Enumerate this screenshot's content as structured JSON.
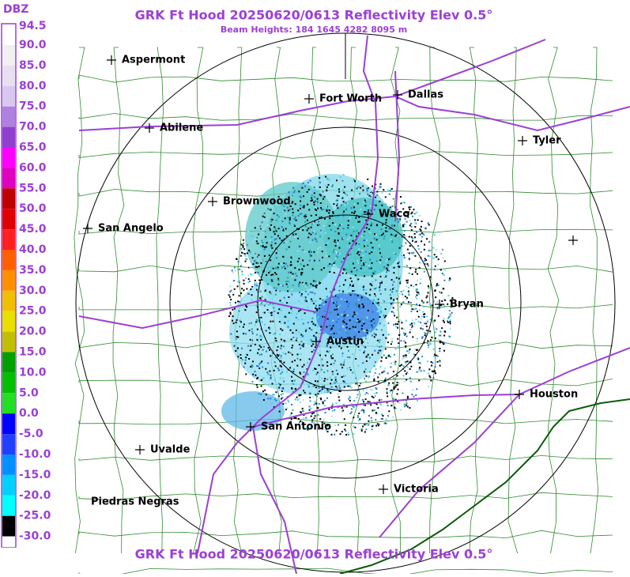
{
  "header": {
    "title": "GRK Ft Hood 20250620/0613 Reflectivity Elev 0.5°",
    "subtitle": "Beam Heights: 184 1645 4282 8095 m",
    "unit": "DBZ"
  },
  "footer": {
    "title": "GRK Ft Hood 20250620/0613 Reflectivity Elev 0.5°"
  },
  "legend": {
    "labels": [
      "94.5",
      "90.0",
      "85.0",
      "80.0",
      "75.0",
      "70.0",
      "65.0",
      "60.0",
      "55.0",
      "50.0",
      "45.0",
      "40.0",
      "35.0",
      "30.0",
      "25.0",
      "20.0",
      "15.0",
      "10.0",
      "5.0",
      "0.0",
      "-5.0",
      "-10.0",
      "-15.0",
      "-20.0",
      "-25.0",
      "-30.0"
    ]
  },
  "cities": [
    "Aspermont",
    "Fort Worth",
    "Dallas",
    "Abilene",
    "Tyler",
    "Brownwood",
    "Waco",
    "San Angelo",
    "Bryan",
    "Austin",
    "Houston",
    "San Antonio",
    "Uvalde",
    "Victoria",
    "Piedras Negras"
  ]
}
